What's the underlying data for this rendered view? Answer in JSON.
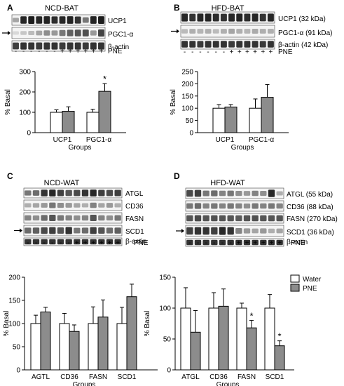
{
  "panels": [
    {
      "letter": "A",
      "title": "NCD-BAT",
      "arrow_row": 1,
      "bands": [
        {
          "label": "UCP1"
        },
        {
          "label": "PGC1-α"
        },
        {
          "label": "β-actin"
        }
      ],
      "pne_signs": [
        "-",
        "-",
        "-",
        "-",
        "-",
        "-",
        "+",
        "+",
        "+",
        "+",
        "+",
        "+"
      ],
      "pne_label": "PNE",
      "band_rows": [
        [
          0.35,
          0.9,
          0.95,
          0.9,
          0.92,
          0.88,
          0.9,
          0.92,
          0.85,
          0.55,
          0.92,
          0.95
        ],
        [
          0.12,
          0.2,
          0.25,
          0.35,
          0.45,
          0.4,
          0.55,
          0.65,
          0.7,
          0.72,
          0.4,
          0.78
        ],
        [
          0.8,
          0.85,
          0.85,
          0.82,
          0.85,
          0.85,
          0.82,
          0.85,
          0.85,
          0.82,
          0.85,
          0.85
        ]
      ]
    },
    {
      "letter": "B",
      "title": "HFD-BAT",
      "arrow_row": 1,
      "bands": [
        {
          "label": "UCP1 (32 kDa)"
        },
        {
          "label": "PGC1-α (91 kDa)"
        },
        {
          "label": "β-actin (42 kDa)"
        }
      ],
      "pne_signs": [
        "-",
        "-",
        "-",
        "-",
        "-",
        "-",
        "+",
        "+",
        "+",
        "+",
        "+",
        "+"
      ],
      "pne_label": "PNE",
      "band_rows": [
        [
          0.9,
          0.85,
          0.9,
          0.92,
          0.88,
          0.85,
          0.9,
          0.92,
          0.88,
          0.9,
          0.85,
          0.9
        ],
        [
          0.25,
          0.3,
          0.28,
          0.3,
          0.25,
          0.3,
          0.35,
          0.3,
          0.28,
          0.32,
          0.3,
          0.3
        ],
        [
          0.85,
          0.85,
          0.82,
          0.85,
          0.85,
          0.85,
          0.82,
          0.85,
          0.85,
          0.85,
          0.82,
          0.85
        ]
      ]
    },
    {
      "letter": "C",
      "title": "NCD-WAT",
      "arrow_row": 3,
      "bands": [
        {
          "label": "ATGL"
        },
        {
          "label": "CD36"
        },
        {
          "label": "FASN"
        },
        {
          "label": "SCD1"
        },
        {
          "label": "β-actin"
        }
      ],
      "pne_signs": [
        "-",
        "-",
        "-",
        "-",
        "-",
        "-",
        "+",
        "+",
        "+",
        "+",
        "+",
        "+"
      ],
      "pne_label": "PNE",
      "band_rows": [
        [
          0.55,
          0.6,
          0.85,
          0.9,
          0.8,
          0.7,
          0.75,
          0.85,
          0.9,
          0.8,
          0.75,
          0.8
        ],
        [
          0.3,
          0.35,
          0.4,
          0.55,
          0.45,
          0.4,
          0.35,
          0.3,
          0.5,
          0.35,
          0.4,
          0.3
        ],
        [
          0.5,
          0.45,
          0.6,
          0.7,
          0.55,
          0.5,
          0.45,
          0.5,
          0.7,
          0.5,
          0.45,
          0.55
        ],
        [
          0.6,
          0.65,
          0.75,
          0.8,
          0.7,
          0.85,
          0.55,
          0.6,
          0.8,
          0.7,
          0.6,
          0.65
        ],
        [
          0.85,
          0.85,
          0.85,
          0.85,
          0.85,
          0.85,
          0.85,
          0.85,
          0.85,
          0.85,
          0.85,
          0.85
        ]
      ]
    },
    {
      "letter": "D",
      "title": "HFD-WAT",
      "arrow_row": 3,
      "bands": [
        {
          "label": "ATGL (55 kDa)"
        },
        {
          "label": "CD36 (88 kDa)"
        },
        {
          "label": "FASN (270 kDa)"
        },
        {
          "label": "SCD1 (36 kDa)"
        },
        {
          "label": "β-actin"
        }
      ],
      "pne_signs": [
        "-",
        "-",
        "-",
        "-",
        "-",
        "-",
        "+",
        "+",
        "+",
        "+",
        "+",
        "+"
      ],
      "pne_label": "PNE",
      "band_rows": [
        [
          0.75,
          0.8,
          0.55,
          0.6,
          0.5,
          0.55,
          0.45,
          0.4,
          0.5,
          0.45,
          0.9,
          0.3
        ],
        [
          0.55,
          0.6,
          0.5,
          0.55,
          0.5,
          0.55,
          0.5,
          0.45,
          0.55,
          0.5,
          0.55,
          0.5
        ],
        [
          0.7,
          0.75,
          0.7,
          0.72,
          0.7,
          0.7,
          0.68,
          0.7,
          0.72,
          0.7,
          0.7,
          0.7
        ],
        [
          0.8,
          0.85,
          0.85,
          0.8,
          0.9,
          0.85,
          0.5,
          0.4,
          0.35,
          0.4,
          0.3,
          0.35
        ],
        [
          0.85,
          0.85,
          0.85,
          0.85,
          0.85,
          0.85,
          0.85,
          0.85,
          0.85,
          0.85,
          0.85,
          0.85
        ]
      ]
    }
  ],
  "legend": {
    "items": [
      {
        "label": "Water",
        "color": "#ffffff"
      },
      {
        "label": "PNE",
        "color": "#8c8c8c"
      }
    ]
  },
  "colors": {
    "water": "#ffffff",
    "pne": "#8c8c8c",
    "band": "#111111"
  },
  "chart_data": [
    {
      "type": "bar",
      "title": "",
      "xlabel": "Groups",
      "ylabel": "% Basal",
      "ylim": [
        0,
        300
      ],
      "yticks": [
        0,
        100,
        200,
        300
      ],
      "categories": [
        "UCP1",
        "PGC1-α"
      ],
      "series": [
        {
          "name": "Water",
          "values": [
            100,
            100
          ],
          "errors": [
            12,
            15
          ]
        },
        {
          "name": "PNE",
          "values": [
            105,
            203
          ],
          "errors": [
            22,
            38
          ]
        }
      ],
      "significance": [
        {
          "category": 1,
          "series": 1,
          "mark": "*"
        }
      ]
    },
    {
      "type": "bar",
      "title": "",
      "xlabel": "Groups",
      "ylabel": "% Basal",
      "ylim": [
        0,
        250
      ],
      "yticks": [
        0,
        50,
        100,
        150,
        200,
        250
      ],
      "categories": [
        "UCP1",
        "PGC1-α"
      ],
      "series": [
        {
          "name": "Water",
          "values": [
            100,
            100
          ],
          "errors": [
            15,
            38
          ]
        },
        {
          "name": "PNE",
          "values": [
            105,
            145
          ],
          "errors": [
            10,
            52
          ]
        }
      ],
      "significance": []
    },
    {
      "type": "bar",
      "title": "",
      "xlabel": "Groups",
      "ylabel": "% Basal",
      "ylim": [
        0,
        200
      ],
      "yticks": [
        0,
        50,
        100,
        150,
        200
      ],
      "categories": [
        "AGTL",
        "CD36",
        "FASN",
        "SCD1"
      ],
      "series": [
        {
          "name": "Water",
          "values": [
            100,
            100,
            100,
            100
          ],
          "errors": [
            18,
            22,
            36,
            35
          ]
        },
        {
          "name": "PNE",
          "values": [
            125,
            83,
            114,
            158
          ],
          "errors": [
            10,
            14,
            37,
            27
          ]
        }
      ],
      "significance": []
    },
    {
      "type": "bar",
      "title": "",
      "xlabel": "Groups",
      "ylabel": "% Basal",
      "ylim": [
        0,
        150
      ],
      "yticks": [
        0,
        50,
        100,
        150
      ],
      "categories": [
        "ATGL",
        "CD36",
        "FASN",
        "SCD1"
      ],
      "series": [
        {
          "name": "Water",
          "values": [
            100,
            100,
            100,
            100
          ],
          "errors": [
            33,
            25,
            8,
            22
          ]
        },
        {
          "name": "PNE",
          "values": [
            61,
            103,
            68,
            39
          ],
          "errors": [
            35,
            28,
            12,
            8
          ]
        }
      ],
      "significance": [
        {
          "category": 2,
          "series": 1,
          "mark": "*"
        },
        {
          "category": 3,
          "series": 1,
          "mark": "*"
        }
      ]
    }
  ]
}
